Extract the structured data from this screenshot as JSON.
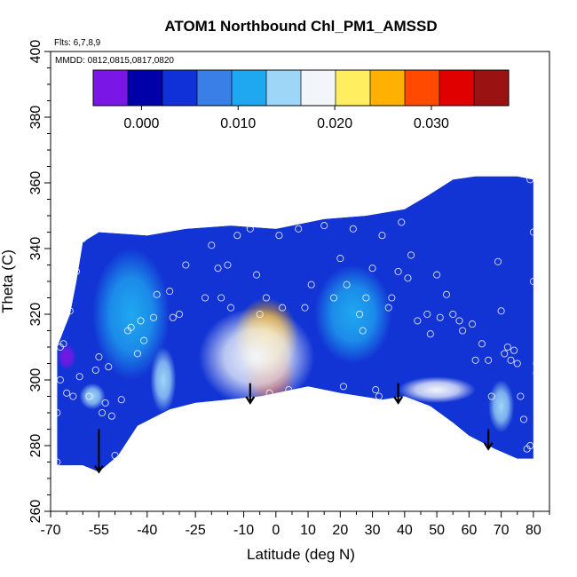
{
  "chart_data": {
    "type": "heatmap",
    "title": "ATOM1 Northbound Chl_PM1_AMSSD",
    "flights_note": "Flts: 6,7,8,9",
    "dates_note": "MMDD: 0812,0815,0817,0820",
    "xlabel": "Latitude (deg N)",
    "ylabel": "Theta (C)",
    "xlim": [
      -70,
      85
    ],
    "ylim": [
      260,
      400
    ],
    "x_ticks": [
      -70,
      -55,
      -40,
      -25,
      -10,
      0,
      10,
      20,
      30,
      40,
      50,
      60,
      70,
      80
    ],
    "y_ticks": [
      260,
      280,
      300,
      320,
      340,
      360,
      380,
      400
    ],
    "colorbar": {
      "range": [
        -0.005,
        0.038
      ],
      "ticks": [
        0.0,
        0.01,
        0.02,
        0.03
      ],
      "tick_labels": [
        "0.000",
        "0.010",
        "0.020",
        "0.030"
      ],
      "colors": [
        "#7a16e6",
        "#0000a8",
        "#1030d8",
        "#3a7ee8",
        "#1fa8f0",
        "#9ed6f7",
        "#f2f6fb",
        "#ffee60",
        "#ffb000",
        "#ff4a00",
        "#e00000",
        "#9a1212"
      ]
    },
    "boundary": [
      [
        -68,
        274
      ],
      [
        -60,
        274
      ],
      [
        -55,
        272
      ],
      [
        -49,
        277
      ],
      [
        -43,
        286
      ],
      [
        -33,
        291
      ],
      [
        -25,
        293
      ],
      [
        -15,
        294
      ],
      [
        -5,
        295
      ],
      [
        10,
        298
      ],
      [
        20,
        296
      ],
      [
        33,
        294
      ],
      [
        40,
        295
      ],
      [
        48,
        292
      ],
      [
        55,
        287
      ],
      [
        60,
        283
      ],
      [
        68,
        279
      ],
      [
        75,
        276
      ],
      [
        80,
        276
      ],
      [
        80,
        361
      ],
      [
        75,
        362
      ],
      [
        62,
        362
      ],
      [
        55,
        361
      ],
      [
        47,
        356
      ],
      [
        40,
        352
      ],
      [
        28,
        350
      ],
      [
        15,
        349
      ],
      [
        0,
        346
      ],
      [
        -14,
        347
      ],
      [
        -28,
        346
      ],
      [
        -40,
        344
      ],
      [
        -55,
        345
      ],
      [
        -60,
        342
      ],
      [
        -62,
        330
      ],
      [
        -64,
        320
      ],
      [
        -66,
        315
      ],
      [
        -68,
        310
      ]
    ],
    "hotspots": [
      {
        "x": -2,
        "y": 302,
        "value": 0.036,
        "rx": 8,
        "ry": 10
      },
      {
        "x": -3,
        "y": 313,
        "value": 0.024,
        "rx": 10,
        "ry": 12
      },
      {
        "x": -6,
        "y": 307,
        "value": 0.018,
        "rx": 18,
        "ry": 15
      },
      {
        "x": 50,
        "y": 297,
        "value": 0.018,
        "rx": 12,
        "ry": 4
      },
      {
        "x": -35,
        "y": 300,
        "value": 0.013,
        "rx": 4,
        "ry": 10
      },
      {
        "x": -57,
        "y": 295,
        "value": 0.013,
        "rx": 4,
        "ry": 4
      },
      {
        "x": 70,
        "y": 292,
        "value": 0.013,
        "rx": 4,
        "ry": 8
      },
      {
        "x": -45,
        "y": 320,
        "value": 0.011,
        "rx": 12,
        "ry": 20
      },
      {
        "x": 24,
        "y": 320,
        "value": 0.011,
        "rx": 12,
        "ry": 15
      },
      {
        "x": -65,
        "y": 307,
        "value": -0.002,
        "rx": 3,
        "ry": 4
      }
    ],
    "points": [
      [
        -68,
        275
      ],
      [
        -68,
        290
      ],
      [
        -67,
        300
      ],
      [
        -67,
        310
      ],
      [
        -66,
        311
      ],
      [
        -65,
        296
      ],
      [
        -64,
        321
      ],
      [
        -63,
        295
      ],
      [
        -61,
        301
      ],
      [
        -58,
        295
      ],
      [
        -56,
        303
      ],
      [
        -55,
        307
      ],
      [
        -54,
        290
      ],
      [
        -53,
        293
      ],
      [
        -52,
        304
      ],
      [
        -51,
        289
      ],
      [
        -50,
        277
      ],
      [
        -48,
        294
      ],
      [
        -46,
        315
      ],
      [
        -45,
        316
      ],
      [
        -43,
        308
      ],
      [
        -42,
        318
      ],
      [
        -41,
        312
      ],
      [
        -40,
        276
      ],
      [
        -38,
        319
      ],
      [
        -37,
        326
      ],
      [
        -33,
        327
      ],
      [
        -32,
        319
      ],
      [
        -30,
        320
      ],
      [
        -28,
        335
      ],
      [
        -22,
        325
      ],
      [
        -20,
        341
      ],
      [
        -18,
        334
      ],
      [
        -17,
        325
      ],
      [
        -15,
        335
      ],
      [
        -14,
        322
      ],
      [
        -12,
        344
      ],
      [
        -8,
        346
      ],
      [
        -6,
        332
      ],
      [
        -5,
        320
      ],
      [
        -3,
        325
      ],
      [
        -2,
        296
      ],
      [
        1,
        344
      ],
      [
        2,
        322
      ],
      [
        4,
        297
      ],
      [
        7,
        346
      ],
      [
        9,
        322
      ],
      [
        11,
        329
      ],
      [
        15,
        347
      ],
      [
        18,
        325
      ],
      [
        20,
        337
      ],
      [
        21,
        298
      ],
      [
        22,
        329
      ],
      [
        24,
        346
      ],
      [
        26,
        320
      ],
      [
        27,
        315
      ],
      [
        28,
        325
      ],
      [
        30,
        334
      ],
      [
        31,
        297
      ],
      [
        32,
        295
      ],
      [
        33,
        344
      ],
      [
        35,
        322
      ],
      [
        36,
        325
      ],
      [
        38,
        333
      ],
      [
        39,
        348
      ],
      [
        41,
        331
      ],
      [
        42,
        338
      ],
      [
        44,
        318
      ],
      [
        47,
        320
      ],
      [
        48,
        314
      ],
      [
        50,
        332
      ],
      [
        51,
        319
      ],
      [
        53,
        326
      ],
      [
        55,
        320
      ],
      [
        57,
        318
      ],
      [
        58,
        315
      ],
      [
        61,
        317
      ],
      [
        62,
        306
      ],
      [
        64,
        311
      ],
      [
        66,
        306
      ],
      [
        67,
        295
      ],
      [
        69,
        336
      ],
      [
        70,
        321
      ],
      [
        71,
        308
      ],
      [
        72,
        310
      ],
      [
        73,
        306
      ],
      [
        74,
        309
      ],
      [
        75,
        305
      ],
      [
        76,
        295
      ],
      [
        77,
        288
      ],
      [
        78,
        279
      ],
      [
        79,
        280
      ],
      [
        80,
        345
      ],
      [
        80,
        330
      ],
      [
        81,
        305
      ],
      [
        81,
        302
      ],
      [
        82,
        277
      ],
      [
        79,
        361
      ],
      [
        -60,
        343
      ],
      [
        -62,
        333
      ]
    ],
    "arrows": [
      {
        "x": -55,
        "y_top": 285,
        "y_bottom": 272
      },
      {
        "x": -8,
        "y_top": 299,
        "y_bottom": 293
      },
      {
        "x": 38,
        "y_top": 299,
        "y_bottom": 293
      },
      {
        "x": 66,
        "y_top": 285,
        "y_bottom": 279
      }
    ]
  }
}
